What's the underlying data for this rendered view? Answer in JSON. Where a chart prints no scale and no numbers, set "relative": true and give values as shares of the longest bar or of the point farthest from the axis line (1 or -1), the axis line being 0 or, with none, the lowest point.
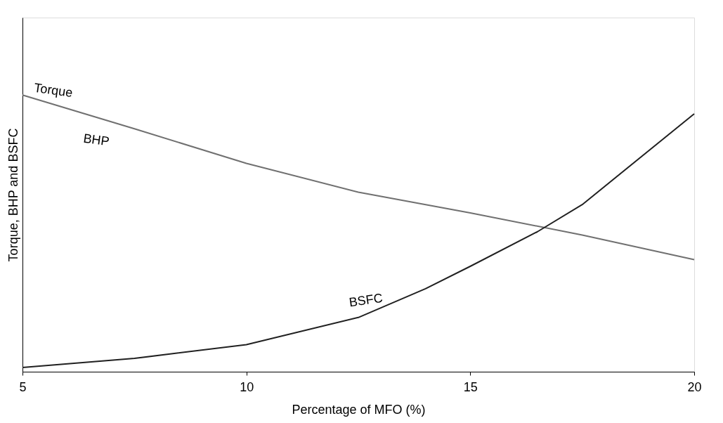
{
  "chart_data": {
    "type": "line",
    "relative": true,
    "xlabel": "Percentage of MFO (%)",
    "ylabel": "Torque, BHP and BSFC",
    "xlim": [
      5,
      20
    ],
    "xticks": [
      5,
      10,
      15,
      20
    ],
    "grid": false,
    "marker": "none",
    "line_style": "solid",
    "series": [
      {
        "name": "Torque",
        "color": "#707070",
        "x": [
          5,
          7.5,
          10,
          12.5,
          15,
          17.5,
          20
        ],
        "values": [
          1.0,
          0.878,
          0.753,
          0.649,
          0.574,
          0.494,
          0.405
        ]
      },
      {
        "name": "BSFC",
        "color": "#202020",
        "x": [
          5,
          7.5,
          10,
          12.5,
          14,
          15,
          16.5,
          17.5,
          20
        ],
        "values": [
          0.015,
          0.048,
          0.098,
          0.196,
          0.3,
          0.381,
          0.506,
          0.604,
          0.932
        ]
      }
    ],
    "annotations": [
      "BHP"
    ]
  }
}
